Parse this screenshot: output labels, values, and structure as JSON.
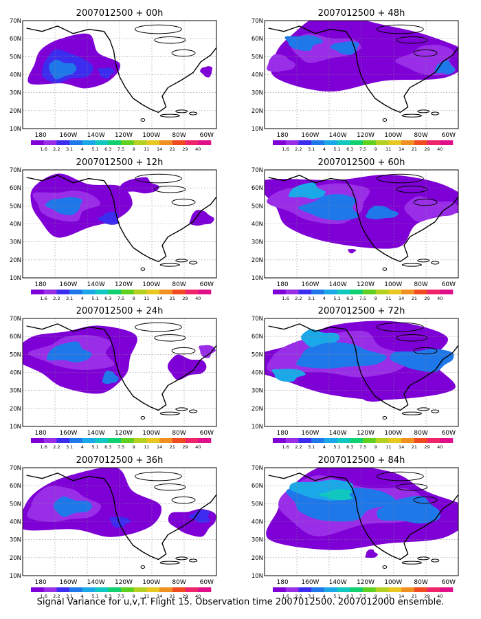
{
  "figure": {
    "caption": "Signal Variance for u,v,T. Flight 15. Observation time 2007012500. 2007012000 ensemble."
  },
  "axes": {
    "lat_labels": [
      "70N",
      "60N",
      "50N",
      "40N",
      "30N",
      "20N",
      "10N"
    ],
    "lon_labels": [
      "180",
      "160W",
      "140W",
      "120W",
      "100W",
      "80W",
      "60W"
    ]
  },
  "colorbar": {
    "labels": [
      "1.6",
      "2.2",
      "3.1",
      "4",
      "5.1",
      "6.3",
      "7.5",
      "9",
      "11",
      "14",
      "21",
      "29",
      "40"
    ],
    "colors": [
      "#7e00d6",
      "#9a2de8",
      "#3c2cf0",
      "#1f78ea",
      "#1aa8e8",
      "#10c8c0",
      "#10d070",
      "#60d020",
      "#b4d020",
      "#e8c820",
      "#f09020",
      "#f04a20",
      "#f0246a",
      "#e0108a"
    ]
  },
  "panels": [
    {
      "title": "2007012500 + 00h",
      "col": 0,
      "row": 0
    },
    {
      "title": "2007012500 + 48h",
      "col": 1,
      "row": 0
    },
    {
      "title": "2007012500 + 12h",
      "col": 0,
      "row": 1
    },
    {
      "title": "2007012500 + 60h",
      "col": 1,
      "row": 1
    },
    {
      "title": "2007012500 + 24h",
      "col": 0,
      "row": 2
    },
    {
      "title": "2007012500 + 72h",
      "col": 1,
      "row": 2
    },
    {
      "title": "2007012500 + 36h",
      "col": 0,
      "row": 3
    },
    {
      "title": "2007012500 + 84h",
      "col": 1,
      "row": 3
    }
  ]
}
